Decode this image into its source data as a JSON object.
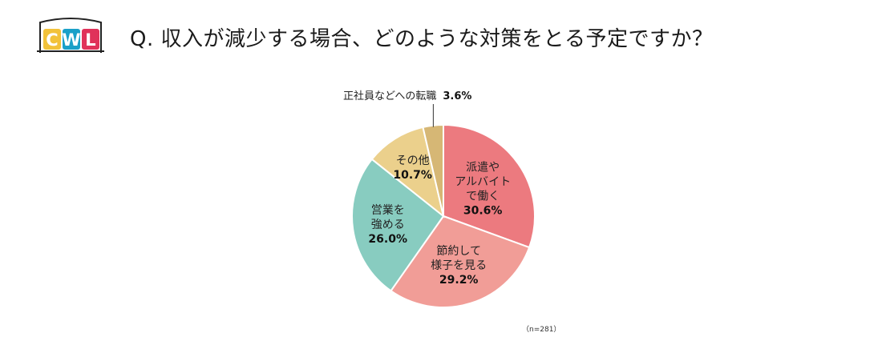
{
  "logo": {
    "text": "CWL",
    "letters": [
      "C",
      "W",
      "L"
    ],
    "colors": [
      "#f2c23a",
      "#1aa0c8",
      "#e0325a"
    ]
  },
  "title": "Q. 収入が減少する場合、どのような対策をとる予定ですか？",
  "note": "（n=281）",
  "chart_data": {
    "type": "pie",
    "start": "12 o'clock",
    "direction": "clockwise",
    "slices": [
      {
        "label_lines": [
          "派遣や",
          "アルバイト",
          "で働く"
        ],
        "value": 30.6,
        "display": "30.6%",
        "color": "#ec7a7f"
      },
      {
        "label_lines": [
          "節約して",
          "様子を見る"
        ],
        "value": 29.2,
        "display": "29.2%",
        "color": "#f19d97"
      },
      {
        "label_lines": [
          "営業を",
          "強める"
        ],
        "value": 26.0,
        "display": "26.0%",
        "color": "#88ccc0"
      },
      {
        "label_lines": [
          "その他"
        ],
        "value": 10.7,
        "display": "10.7%",
        "color": "#ebd08c"
      },
      {
        "label_lines": [
          "正社員などへの転職"
        ],
        "value": 3.6,
        "display": "3.6%",
        "color": "#d6b775",
        "outside": true
      }
    ]
  }
}
